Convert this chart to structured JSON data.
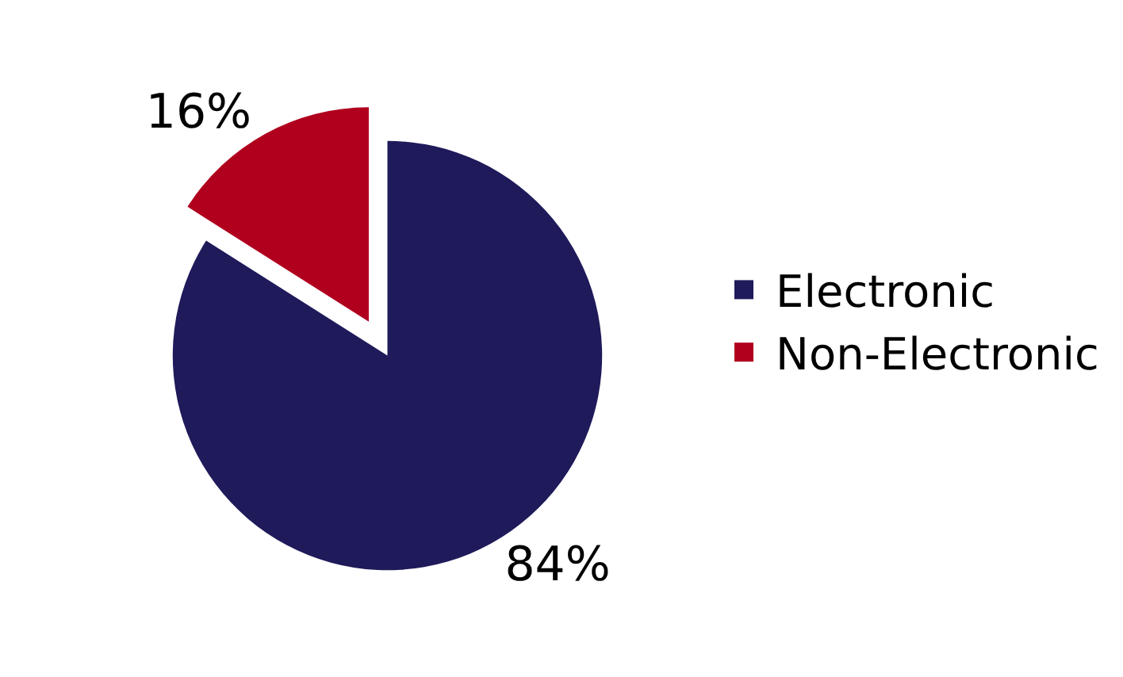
{
  "chart_data": {
    "type": "pie",
    "categories": [
      "Electronic",
      "Non-Electronic"
    ],
    "values": [
      84,
      16
    ],
    "value_labels": [
      "84%",
      "16%"
    ],
    "colors": [
      "#1f1a5a",
      "#b0001e"
    ],
    "legend": "right"
  }
}
